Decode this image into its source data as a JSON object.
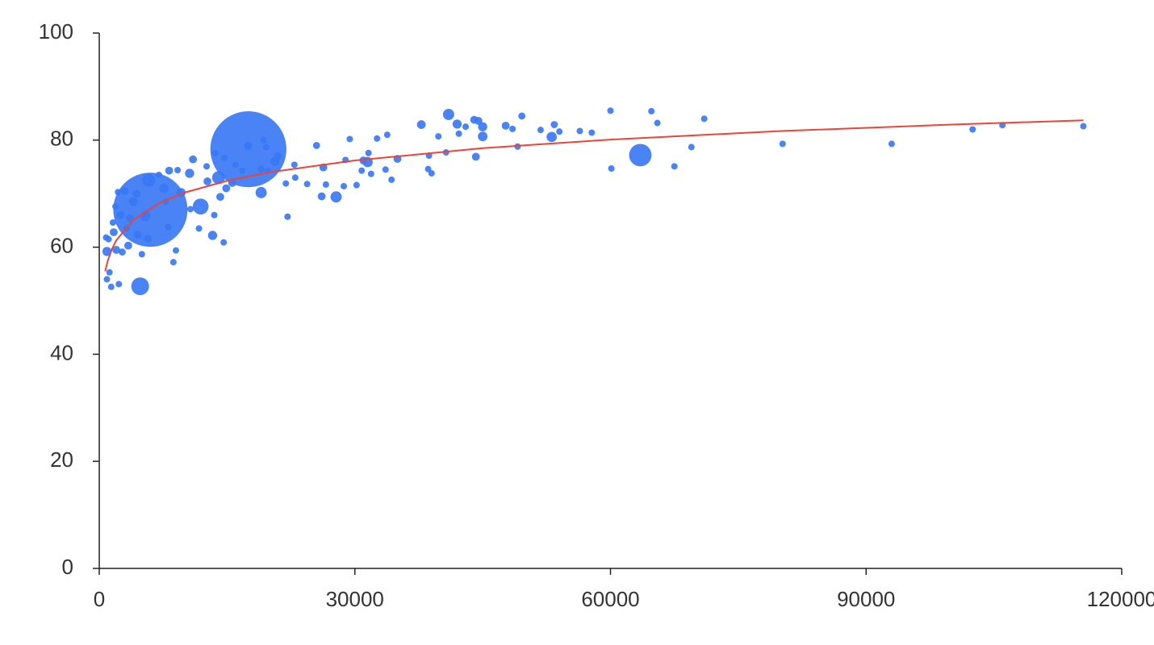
{
  "chart_data": {
    "type": "bubble",
    "series": [
      {
        "color": "#3a78f5",
        "x": [
          115500,
          106000,
          102500,
          93000,
          80200,
          71000,
          69500,
          67500,
          65500,
          64800,
          63500,
          60000,
          60100,
          57800,
          56400,
          54000,
          53400,
          53100,
          51800,
          49600,
          49100,
          48500,
          47700,
          45000,
          45000,
          44500,
          44000,
          44200,
          43000,
          42200,
          42000,
          41000,
          40700,
          39800,
          39000,
          38700,
          38600,
          37800,
          35000,
          34300,
          33800,
          33600,
          32600,
          31900,
          31600,
          31500,
          31000,
          30800,
          30200,
          29400,
          28900,
          28700,
          27800,
          26600,
          26300,
          26100,
          25500,
          24400,
          23000,
          22900,
          22100,
          21900,
          21000,
          20600,
          19800,
          19600,
          19300,
          19000,
          19000,
          17500,
          17500,
          16800,
          16000,
          15600,
          14900,
          14700,
          14600,
          14200,
          14000,
          13600,
          13500,
          13300,
          12700,
          12600,
          11900,
          11700,
          11000,
          10600,
          10700,
          9600,
          9200,
          9000,
          8700,
          8200,
          8100,
          7800,
          7600,
          7000,
          6000,
          5800,
          5700,
          5400,
          5000,
          4800,
          4500,
          4400,
          4000,
          3600,
          3400,
          3200,
          3000,
          2700,
          2500,
          2300,
          2200,
          2000,
          1900,
          1700,
          1600,
          1400,
          1200,
          1100,
          900,
          900,
          800
        ],
        "values": [
          82.6,
          82.8,
          82.0,
          79.3,
          79.3,
          84.0,
          78.7,
          75.1,
          83.2,
          85.4,
          77.2,
          85.5,
          74.7,
          81.4,
          81.7,
          81.6,
          82.9,
          80.6,
          81.9,
          84.5,
          78.8,
          82.1,
          82.7,
          80.7,
          82.5,
          83.6,
          83.8,
          76.9,
          82.5,
          81.2,
          83.0,
          84.8,
          77.7,
          80.7,
          73.8,
          77.1,
          74.6,
          82.9,
          76.5,
          72.6,
          81.0,
          74.5,
          80.3,
          73.7,
          77.6,
          75.9,
          76.2,
          74.3,
          71.6,
          80.2,
          76.3,
          71.4,
          69.4,
          71.7,
          74.9,
          69.5,
          79.0,
          71.8,
          73.0,
          75.4,
          65.7,
          71.9,
          77.0,
          76.0,
          74.3,
          78.7,
          80.0,
          74.6,
          70.2,
          78.3,
          78.9,
          74.3,
          75.4,
          72.0,
          71.0,
          76.7,
          60.9,
          69.4,
          73.0,
          77.6,
          66.0,
          62.2,
          72.3,
          75.1,
          67.6,
          63.5,
          76.4,
          73.8,
          67.1,
          70.2,
          74.4,
          59.4,
          57.2,
          74.3,
          63.7,
          68.5,
          71.0,
          73.5,
          67.0,
          72.5,
          61.6,
          65.8,
          58.7,
          52.7,
          62.3,
          70.0,
          68.5,
          65.4,
          60.3,
          63.5,
          70.5,
          59.1,
          66.0,
          53.1,
          70.3,
          59.5,
          67.6,
          62.8,
          64.6,
          52.6,
          55.3,
          61.5,
          54.0,
          59.2,
          61.8
        ],
        "sizes": [
          10,
          10,
          10,
          10,
          10,
          10,
          10,
          10,
          10,
          10,
          120,
          10,
          10,
          10,
          10,
          10,
          12,
          25,
          10,
          12,
          10,
          10,
          15,
          22,
          20,
          15,
          15,
          15,
          10,
          10,
          20,
          30,
          10,
          10,
          10,
          10,
          10,
          18,
          15,
          10,
          10,
          10,
          10,
          10,
          10,
          25,
          15,
          10,
          10,
          10,
          10,
          10,
          30,
          10,
          15,
          15,
          12,
          10,
          10,
          10,
          10,
          10,
          15,
          20,
          10,
          10,
          10,
          12,
          30,
          1376,
          15,
          10,
          10,
          15,
          15,
          10,
          10,
          15,
          40,
          10,
          10,
          20,
          15,
          10,
          60,
          10,
          15,
          20,
          10,
          20,
          10,
          10,
          10,
          15,
          12,
          10,
          20,
          10,
          1311,
          40,
          15,
          25,
          10,
          75,
          15,
          15,
          20,
          15,
          15,
          10,
          15,
          12,
          15,
          10,
          10,
          15,
          10,
          15,
          10,
          10,
          10,
          10,
          10,
          20,
          10
        ]
      },
      {
        "color": "#e8453c",
        "x": [
          700,
          1000,
          1500,
          2000,
          4000,
          7000,
          10000,
          15000,
          20000,
          30000,
          45000,
          60000,
          80000,
          100000,
          115500
        ],
        "values": [
          55.5,
          57.5,
          59.7,
          61.3,
          65.1,
          68.2,
          70.2,
          72.4,
          74.0,
          76.2,
          78.5,
          80.1,
          81.7,
          82.9,
          83.7
        ]
      }
    ],
    "xlim": [
      0,
      120000
    ],
    "xticks": [
      0,
      30000,
      60000,
      90000,
      120000
    ],
    "ylim": [
      0,
      100
    ],
    "yticks": [
      0,
      20,
      40,
      60,
      80,
      100
    ]
  }
}
